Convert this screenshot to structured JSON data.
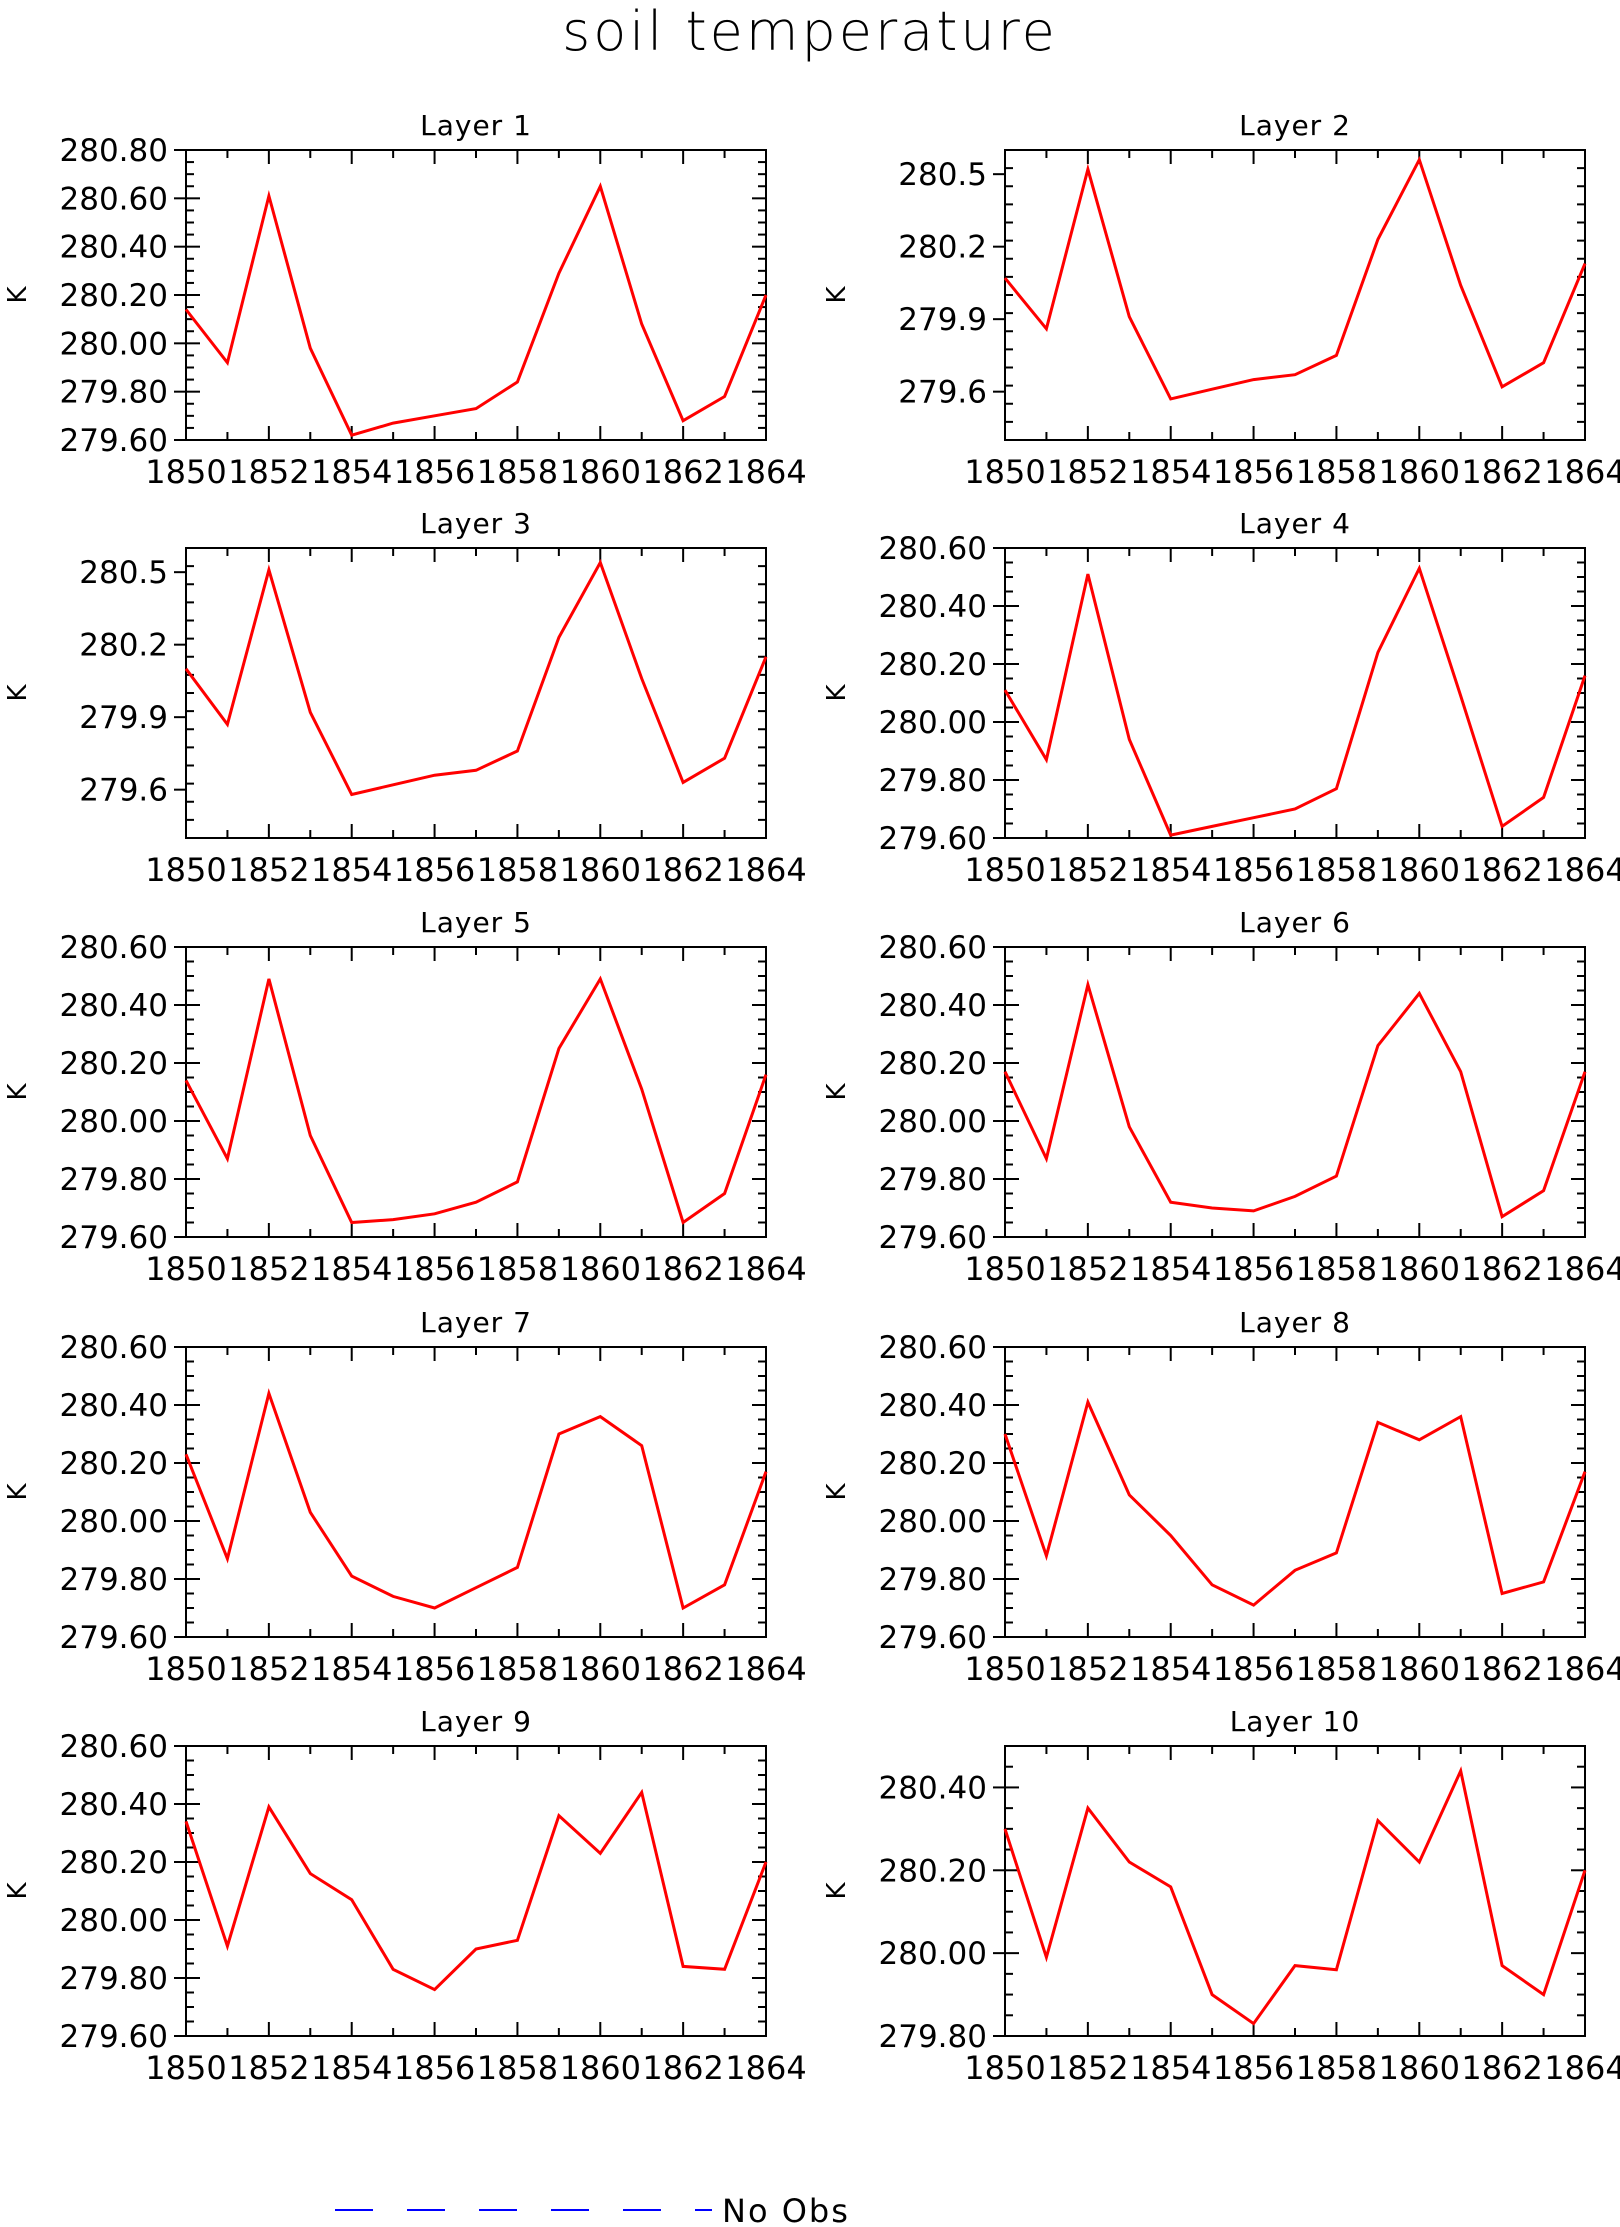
{
  "title": "soil temperature",
  "legend": {
    "label": "No Obs",
    "color": "#0000ff",
    "placement": "bottom"
  },
  "line_color": "#ff0000",
  "chart_data": [
    {
      "type": "line",
      "title": "Layer 1",
      "ylabel": "K",
      "x": [
        1850,
        1851,
        1852,
        1853,
        1854,
        1855,
        1856,
        1857,
        1858,
        1859,
        1860,
        1861,
        1862,
        1863,
        1864
      ],
      "values": [
        280.14,
        279.92,
        280.61,
        279.98,
        279.62,
        279.67,
        279.7,
        279.73,
        279.84,
        280.29,
        280.65,
        280.08,
        279.68,
        279.78,
        280.2
      ],
      "xlim": [
        1850,
        1864
      ],
      "ylim": [
        279.6,
        280.8
      ],
      "xticks": [
        1850,
        1852,
        1854,
        1856,
        1858,
        1860,
        1862,
        1864
      ],
      "yticks": [
        "279.60",
        "279.80",
        "280.00",
        "280.20",
        "280.40",
        "280.60",
        "280.80"
      ]
    },
    {
      "type": "line",
      "title": "Layer 2",
      "ylabel": "K",
      "x": [
        1850,
        1851,
        1852,
        1853,
        1854,
        1855,
        1856,
        1857,
        1858,
        1859,
        1860,
        1861,
        1862,
        1863,
        1864
      ],
      "values": [
        280.07,
        279.86,
        280.52,
        279.91,
        279.57,
        279.61,
        279.65,
        279.67,
        279.75,
        280.23,
        280.56,
        280.04,
        279.62,
        279.72,
        280.13
      ],
      "xlim": [
        1850,
        1864
      ],
      "ylim": [
        279.4,
        280.6
      ],
      "xticks": [
        1850,
        1852,
        1854,
        1856,
        1858,
        1860,
        1862,
        1864
      ],
      "yticks": [
        "279.6",
        "279.9",
        "280.2",
        "280.5"
      ]
    },
    {
      "type": "line",
      "title": "Layer 3",
      "ylabel": "K",
      "x": [
        1850,
        1851,
        1852,
        1853,
        1854,
        1855,
        1856,
        1857,
        1858,
        1859,
        1860,
        1861,
        1862,
        1863,
        1864
      ],
      "values": [
        280.1,
        279.87,
        280.51,
        279.92,
        279.58,
        279.62,
        279.66,
        279.68,
        279.76,
        280.23,
        280.54,
        280.06,
        279.63,
        279.73,
        280.15
      ],
      "xlim": [
        1850,
        1864
      ],
      "ylim": [
        279.4,
        280.6
      ],
      "xticks": [
        1850,
        1852,
        1854,
        1856,
        1858,
        1860,
        1862,
        1864
      ],
      "yticks": [
        "279.6",
        "279.9",
        "280.2",
        "280.5"
      ]
    },
    {
      "type": "line",
      "title": "Layer 4",
      "ylabel": "K",
      "x": [
        1850,
        1851,
        1852,
        1853,
        1854,
        1855,
        1856,
        1857,
        1858,
        1859,
        1860,
        1861,
        1862,
        1863,
        1864
      ],
      "values": [
        280.11,
        279.87,
        280.51,
        279.94,
        279.61,
        279.64,
        279.67,
        279.7,
        279.77,
        280.24,
        280.53,
        280.09,
        279.64,
        279.74,
        280.16
      ],
      "xlim": [
        1850,
        1864
      ],
      "ylim": [
        279.6,
        280.6
      ],
      "xticks": [
        1850,
        1852,
        1854,
        1856,
        1858,
        1860,
        1862,
        1864
      ],
      "yticks": [
        "279.60",
        "279.80",
        "280.00",
        "280.20",
        "280.40",
        "280.60"
      ]
    },
    {
      "type": "line",
      "title": "Layer 5",
      "ylabel": "K",
      "x": [
        1850,
        1851,
        1852,
        1853,
        1854,
        1855,
        1856,
        1857,
        1858,
        1859,
        1860,
        1861,
        1862,
        1863,
        1864
      ],
      "values": [
        280.14,
        279.87,
        280.49,
        279.95,
        279.65,
        279.66,
        279.68,
        279.72,
        279.79,
        280.25,
        280.49,
        280.11,
        279.65,
        279.75,
        280.16
      ],
      "xlim": [
        1850,
        1864
      ],
      "ylim": [
        279.6,
        280.6
      ],
      "xticks": [
        1850,
        1852,
        1854,
        1856,
        1858,
        1860,
        1862,
        1864
      ],
      "yticks": [
        "279.60",
        "279.80",
        "280.00",
        "280.20",
        "280.40",
        "280.60"
      ]
    },
    {
      "type": "line",
      "title": "Layer 6",
      "ylabel": "K",
      "x": [
        1850,
        1851,
        1852,
        1853,
        1854,
        1855,
        1856,
        1857,
        1858,
        1859,
        1860,
        1861,
        1862,
        1863,
        1864
      ],
      "values": [
        280.17,
        279.87,
        280.47,
        279.98,
        279.72,
        279.7,
        279.69,
        279.74,
        279.81,
        280.26,
        280.44,
        280.17,
        279.67,
        279.76,
        280.17
      ],
      "xlim": [
        1850,
        1864
      ],
      "ylim": [
        279.6,
        280.6
      ],
      "xticks": [
        1850,
        1852,
        1854,
        1856,
        1858,
        1860,
        1862,
        1864
      ],
      "yticks": [
        "279.60",
        "279.80",
        "280.00",
        "280.20",
        "280.40",
        "280.60"
      ]
    },
    {
      "type": "line",
      "title": "Layer 7",
      "ylabel": "K",
      "x": [
        1850,
        1851,
        1852,
        1853,
        1854,
        1855,
        1856,
        1857,
        1858,
        1859,
        1860,
        1861,
        1862,
        1863,
        1864
      ],
      "values": [
        280.23,
        279.87,
        280.44,
        280.03,
        279.81,
        279.74,
        279.7,
        279.77,
        279.84,
        280.3,
        280.36,
        280.26,
        279.7,
        279.78,
        280.17
      ],
      "xlim": [
        1850,
        1864
      ],
      "ylim": [
        279.6,
        280.6
      ],
      "xticks": [
        1850,
        1852,
        1854,
        1856,
        1858,
        1860,
        1862,
        1864
      ],
      "yticks": [
        "279.60",
        "279.80",
        "280.00",
        "280.20",
        "280.40",
        "280.60"
      ]
    },
    {
      "type": "line",
      "title": "Layer 8",
      "ylabel": "K",
      "x": [
        1850,
        1851,
        1852,
        1853,
        1854,
        1855,
        1856,
        1857,
        1858,
        1859,
        1860,
        1861,
        1862,
        1863,
        1864
      ],
      "values": [
        280.3,
        279.88,
        280.41,
        280.09,
        279.95,
        279.78,
        279.71,
        279.83,
        279.89,
        280.34,
        280.28,
        280.36,
        279.75,
        279.79,
        280.17
      ],
      "xlim": [
        1850,
        1864
      ],
      "ylim": [
        279.6,
        280.6
      ],
      "xticks": [
        1850,
        1852,
        1854,
        1856,
        1858,
        1860,
        1862,
        1864
      ],
      "yticks": [
        "279.60",
        "279.80",
        "280.00",
        "280.20",
        "280.40",
        "280.60"
      ]
    },
    {
      "type": "line",
      "title": "Layer 9",
      "ylabel": "K",
      "x": [
        1850,
        1851,
        1852,
        1853,
        1854,
        1855,
        1856,
        1857,
        1858,
        1859,
        1860,
        1861,
        1862,
        1863,
        1864
      ],
      "values": [
        280.34,
        279.91,
        280.39,
        280.16,
        280.07,
        279.83,
        279.76,
        279.9,
        279.93,
        280.36,
        280.23,
        280.44,
        279.84,
        279.83,
        280.2
      ],
      "xlim": [
        1850,
        1864
      ],
      "ylim": [
        279.6,
        280.6
      ],
      "xticks": [
        1850,
        1852,
        1854,
        1856,
        1858,
        1860,
        1862,
        1864
      ],
      "yticks": [
        "279.60",
        "279.80",
        "280.00",
        "280.20",
        "280.40",
        "280.60"
      ]
    },
    {
      "type": "line",
      "title": "Layer 10",
      "ylabel": "K",
      "x": [
        1850,
        1851,
        1852,
        1853,
        1854,
        1855,
        1856,
        1857,
        1858,
        1859,
        1860,
        1861,
        1862,
        1863,
        1864
      ],
      "values": [
        280.3,
        279.99,
        280.35,
        280.22,
        280.16,
        279.9,
        279.83,
        279.97,
        279.96,
        280.32,
        280.22,
        280.44,
        279.97,
        279.9,
        280.2
      ],
      "xlim": [
        1850,
        1864
      ],
      "ylim": [
        279.8,
        280.5
      ],
      "xticks": [
        1850,
        1852,
        1854,
        1856,
        1858,
        1860,
        1862,
        1864
      ],
      "yticks": [
        "279.80",
        "280.00",
        "280.20",
        "280.40"
      ]
    }
  ]
}
